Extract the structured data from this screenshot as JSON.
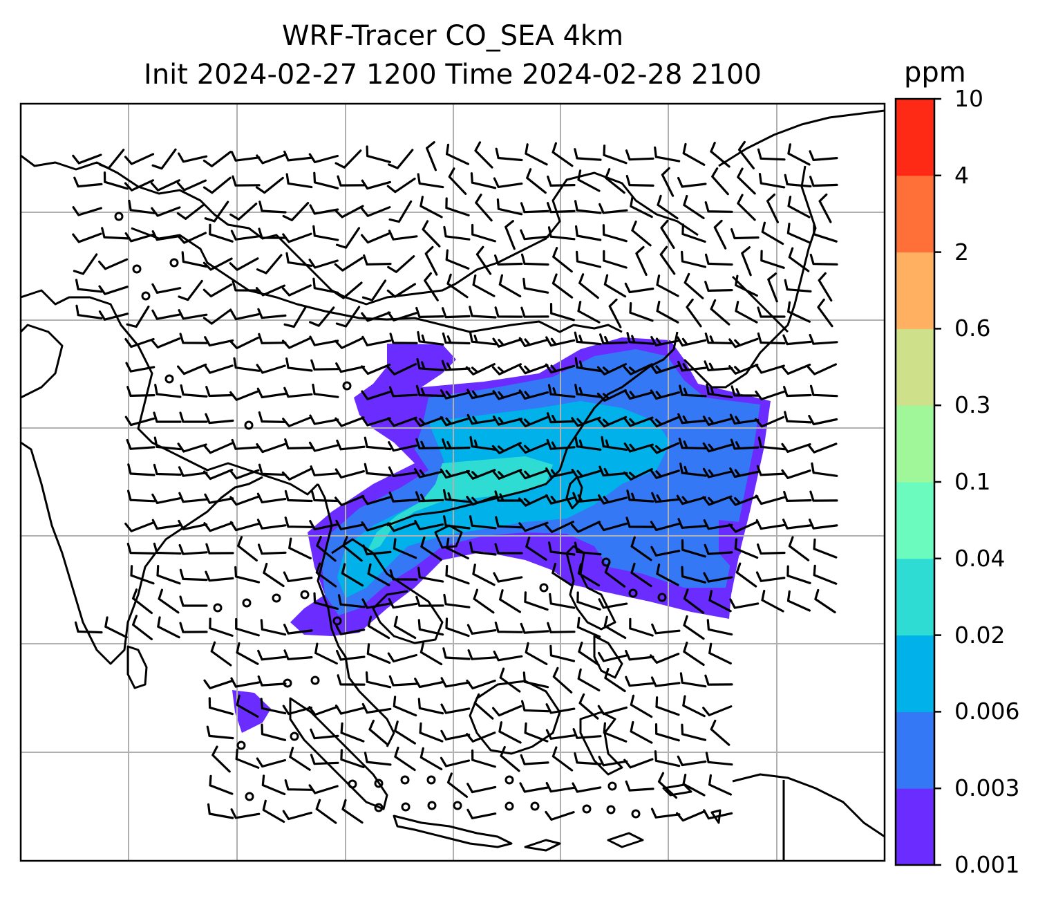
{
  "title": {
    "line1": "WRF-Tracer CO_SEA 4km",
    "line2": "Init 2024-02-27 1200 Time 2024-02-28 2100"
  },
  "colorbar": {
    "unit": "ppm",
    "levels": [
      "0.001",
      "0.003",
      "0.006",
      "0.02",
      "0.04",
      "0.1",
      "0.3",
      "0.6",
      "2",
      "4",
      "10"
    ],
    "colors": [
      "#6a2cff",
      "#3478f6",
      "#00b1ea",
      "#2fdcd4",
      "#6cfbbf",
      "#9ff79a",
      "#cfe08a",
      "#ffb060",
      "#ff7038",
      "#ff2a16"
    ]
  },
  "map": {
    "land_outline_color": "#000000",
    "gridline_color": "#b0b0b0",
    "wind_barb_color": "#000000"
  }
}
